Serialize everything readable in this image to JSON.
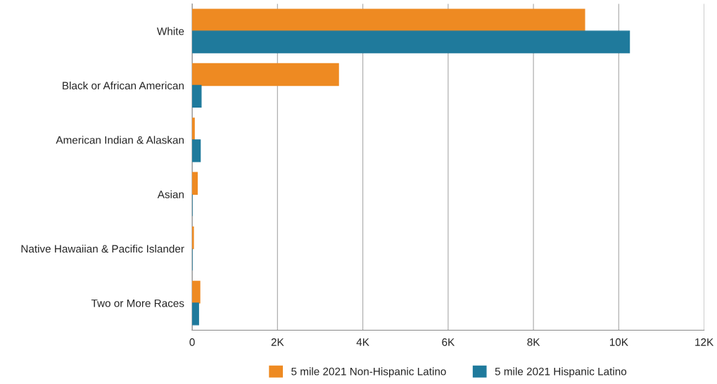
{
  "chart_data": {
    "type": "bar",
    "orientation": "horizontal",
    "categories": [
      "White",
      "Black or African American",
      "American Indian & Alaskan",
      "Asian",
      "Native Hawaiian & Pacific Islander",
      "Two or More Races"
    ],
    "series": [
      {
        "name": "5 mile 2021 Non-Hispanic Latino",
        "color": "#ee8a22",
        "values": [
          9200,
          3430,
          50,
          120,
          30,
          180
        ]
      },
      {
        "name": "5 mile 2021 Hispanic Latino",
        "color": "#1f7a9c",
        "values": [
          10250,
          210,
          190,
          null,
          null,
          150
        ]
      }
    ],
    "xlim": [
      0,
      12000
    ],
    "xticks": [
      {
        "value": 0,
        "label": "0"
      },
      {
        "value": 2000,
        "label": "2K"
      },
      {
        "value": 4000,
        "label": "4K"
      },
      {
        "value": 6000,
        "label": "6K"
      },
      {
        "value": 8000,
        "label": "8K"
      },
      {
        "value": 10000,
        "label": "10K"
      },
      {
        "value": 12000,
        "label": "12K"
      }
    ],
    "grid": "x",
    "legend": "bottom"
  }
}
